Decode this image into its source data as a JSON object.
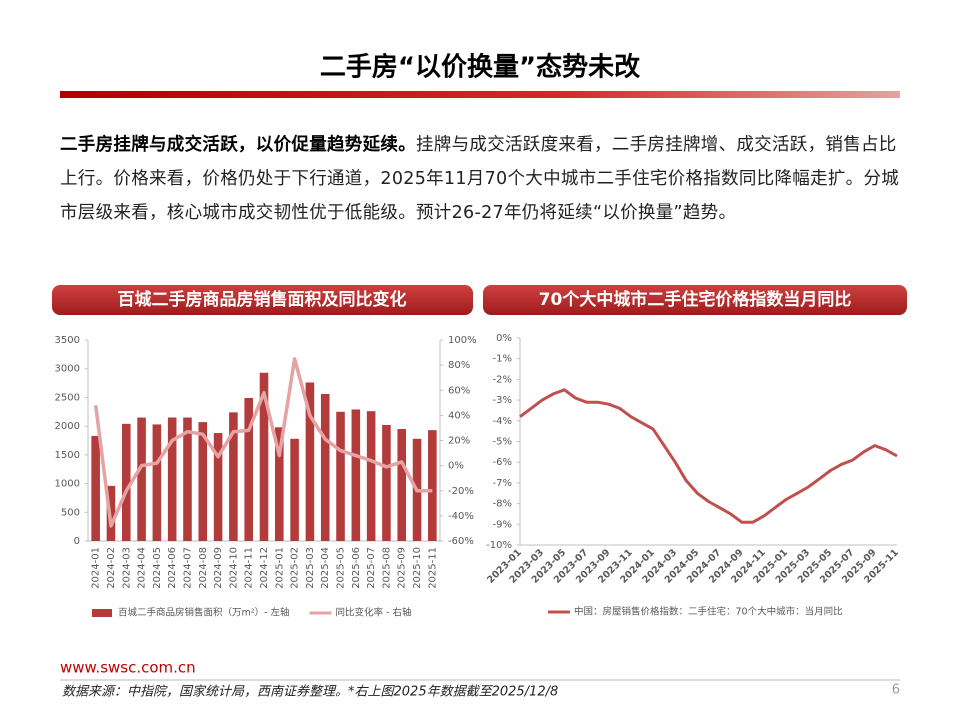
{
  "header": {
    "title": "二手房“以价换量”态势未改"
  },
  "body": {
    "lead": "二手房挂牌与成交活跃，以价促量趋势延续。",
    "text": "挂牌与成交活跃度来看，二手房挂牌增、成交活跃，销售占比上行。价格来看，价格仍处于下行通道，2025年11月70个大中城市二手住宅价格指数同比降幅走扩。分城市层级来看，核心城市成交韧性优于低能级。预计26-27年仍将延续“以价换量”趋势。"
  },
  "chart_data": [
    {
      "type": "bar",
      "title": "百城二手房商品房销售面积及同比变化",
      "categories": [
        "2024-01",
        "2024-02",
        "2024-03",
        "2024-04",
        "2024-05",
        "2024-06",
        "2024-07",
        "2024-08",
        "2024-09",
        "2024-10",
        "2024-11",
        "2024-12",
        "2025-01",
        "2025-02",
        "2025-03",
        "2025-04",
        "2025-05",
        "2025-06",
        "2025-07",
        "2025-08",
        "2025-09",
        "2025-10",
        "2025-11"
      ],
      "series": [
        {
          "name": "百城二手商品房销售面积（万m²）- 左轴",
          "type": "bar",
          "color": "#b23b3b",
          "values": [
            1830,
            960,
            2040,
            2150,
            2030,
            2150,
            2150,
            2070,
            1880,
            2240,
            2490,
            2930,
            1980,
            1780,
            2760,
            2560,
            2250,
            2290,
            2260,
            2020,
            1950,
            1780,
            1930
          ]
        },
        {
          "name": "同比变化率 - 右轴",
          "type": "line",
          "axis": "y2",
          "color": "#e5a3a3",
          "values": [
            48,
            -48,
            -20,
            0,
            2,
            20,
            27,
            25,
            7,
            27,
            28,
            58,
            8,
            85,
            40,
            21,
            12,
            8,
            4,
            -1,
            3,
            -20,
            -20
          ]
        }
      ],
      "ylim": [
        0,
        3500
      ],
      "yticks": [
        0,
        500,
        1000,
        1500,
        2000,
        2500,
        3000,
        3500
      ],
      "y2lim": [
        -60,
        100
      ],
      "y2ticks": [
        {
          "value": -60,
          "label": "-60%"
        },
        {
          "value": -40,
          "label": "-40%"
        },
        {
          "value": -20,
          "label": "-20%"
        },
        {
          "value": 0,
          "label": "0%"
        },
        {
          "value": 20,
          "label": "20%"
        },
        {
          "value": 40,
          "label": "40%"
        },
        {
          "value": 60,
          "label": "60%"
        },
        {
          "value": 80,
          "label": "80%"
        },
        {
          "value": 100,
          "label": "100%"
        }
      ],
      "grid": false
    },
    {
      "type": "line",
      "title": "70个大中城市二手住宅价格指数当月同比",
      "categories": [
        "2023-01",
        null,
        "2023-03",
        null,
        "2023-05",
        null,
        "2023-07",
        null,
        "2023-09",
        null,
        "2023-11",
        null,
        "2024-01",
        null,
        "2024-03",
        null,
        "2024-05",
        null,
        "2024-07",
        null,
        "2024-09",
        null,
        "2024-11",
        null,
        "2025-01",
        null,
        "2025-03",
        null,
        "2025-05",
        null,
        "2025-07",
        null,
        "2025-09",
        null,
        "2025-11"
      ],
      "series": [
        {
          "name": "中国：房屋销售价格指数：二手住宅：70个大中城市：当月同比",
          "type": "line",
          "color": "#c0504d",
          "values": [
            -3.8,
            -3.4,
            -3.0,
            -2.7,
            -2.5,
            -2.9,
            -3.1,
            -3.1,
            -3.2,
            -3.4,
            -3.8,
            -4.1,
            -4.4,
            -5.2,
            -6.0,
            -6.9,
            -7.5,
            -7.9,
            -8.2,
            -8.5,
            -8.9,
            -8.9,
            -8.6,
            -8.2,
            -7.8,
            -7.5,
            -7.2,
            -6.8,
            -6.4,
            -6.1,
            -5.9,
            -5.5,
            -5.2,
            -5.4,
            -5.7
          ]
        }
      ],
      "ylim": [
        -10,
        0
      ],
      "yticks": [
        {
          "value": -10,
          "label": "-10%"
        },
        {
          "value": -9,
          "label": "-9%"
        },
        {
          "value": -8,
          "label": "-8%"
        },
        {
          "value": -7,
          "label": "-7%"
        },
        {
          "value": -6,
          "label": "-6%"
        },
        {
          "value": -5,
          "label": "-5%"
        },
        {
          "value": -4,
          "label": "-4%"
        },
        {
          "value": -3,
          "label": "-3%"
        },
        {
          "value": -2,
          "label": "-2%"
        },
        {
          "value": -1,
          "label": "-1%"
        },
        {
          "value": 0,
          "label": "0%"
        }
      ],
      "grid": false
    }
  ],
  "footer": {
    "url": "www.swsc.com.cn",
    "source": "数据来源：中指院，国家统计局，西南证券整理。*右上图2025年数据截至2025/12/8",
    "page": "6"
  }
}
